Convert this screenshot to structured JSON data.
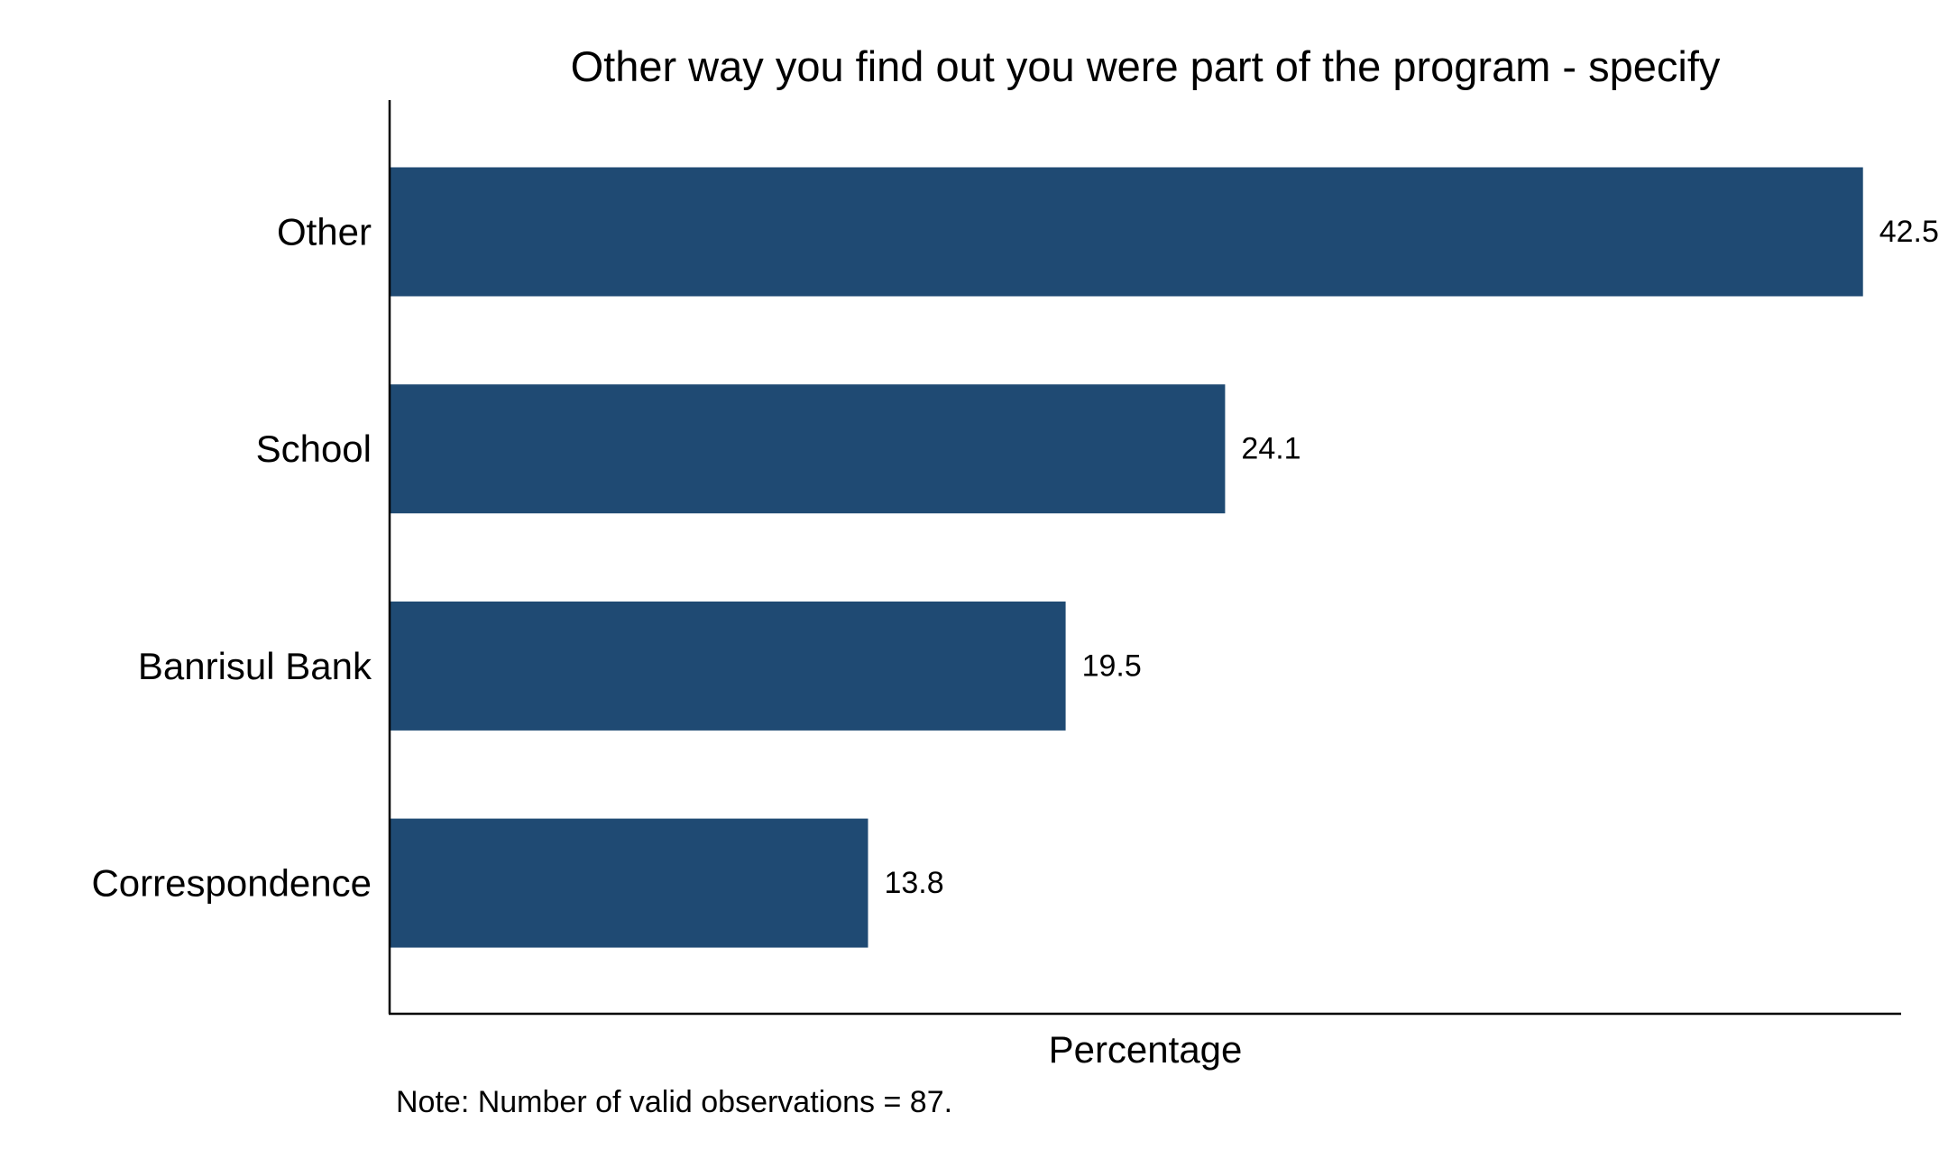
{
  "chart_data": {
    "type": "bar",
    "orientation": "horizontal",
    "title": "Other way you find out you were part of the program - specify",
    "xlabel": "Percentage",
    "ylabel": "",
    "categories": [
      "Other",
      "School",
      "Banrisul Bank",
      "Correspondence"
    ],
    "values": [
      42.5,
      24.1,
      19.5,
      13.8
    ],
    "value_labels": [
      "42.5",
      "24.1",
      "19.5",
      "13.8"
    ],
    "xlim": [
      0,
      43.6
    ],
    "note": "Note: Number of valid observations = 87.",
    "bar_color": "#1f4a73",
    "grid": false,
    "legend": "none"
  }
}
